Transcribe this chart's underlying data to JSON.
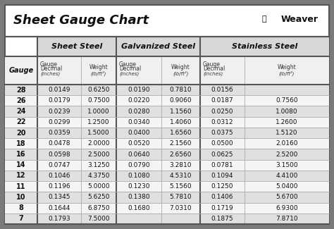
{
  "title": "Sheet Gauge Chart",
  "bg_outer": "#7a7a7a",
  "bg_inner": "#ffffff",
  "row_alt": "#e0e0e0",
  "row_norm": "#f5f5f5",
  "border_thick": "#555555",
  "border_thin": "#aaaaaa",
  "gauges": [
    28,
    26,
    24,
    22,
    20,
    18,
    16,
    14,
    12,
    11,
    10,
    8,
    7
  ],
  "sheet_steel": {
    "decimal": [
      "0.0149",
      "0.0179",
      "0.0239",
      "0.0299",
      "0.0359",
      "0.0478",
      "0.0598",
      "0.0747",
      "0.1046",
      "0.1196",
      "0.1345",
      "0.1644",
      "0.1793"
    ],
    "weight": [
      "0.6250",
      "0.7500",
      "1.0000",
      "1.2500",
      "1.5000",
      "2.0000",
      "2.5000",
      "3.1250",
      "4.3750",
      "5.0000",
      "5.6250",
      "6.8750",
      "7.5000"
    ]
  },
  "galvanized_steel": {
    "decimal": [
      "0.0190",
      "0.0220",
      "0.0280",
      "0.0340",
      "0.0400",
      "0.0520",
      "0.0640",
      "0.0790",
      "0.1080",
      "0.1230",
      "0.1380",
      "0.1680",
      ""
    ],
    "weight": [
      "0.7810",
      "0.9060",
      "1.1560",
      "1.4060",
      "1.6560",
      "2.1560",
      "2.6560",
      "3.2810",
      "4.5310",
      "5.1560",
      "5.7810",
      "7.0310",
      ""
    ]
  },
  "stainless_steel": {
    "decimal": [
      "0.0156",
      "0.0187",
      "0.0250",
      "0.0312",
      "0.0375",
      "0.0500",
      "0.0625",
      "0.0781",
      "0.1094",
      "0.1250",
      "0.1406",
      "0.1719",
      "0.1875"
    ],
    "weight": [
      "",
      "0.7560",
      "1.0080",
      "1.2600",
      "1.5120",
      "2.0160",
      "2.5200",
      "3.1500",
      "4.4100",
      "5.0400",
      "5.6700",
      "6.9300",
      "7.8710"
    ]
  },
  "figsize": [
    4.74,
    3.25
  ],
  "dpi": 100
}
